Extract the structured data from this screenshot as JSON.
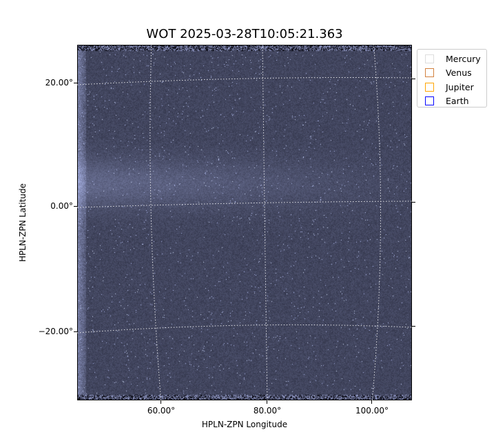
{
  "chart_data": {
    "type": "image",
    "title": "WOT 2025-03-28T10:05:21.363",
    "xlabel": "HPLN-ZPN Longitude",
    "ylabel": "HPLN-ZPN Latitude",
    "x_ticks": [
      "60.00°",
      "80.00°",
      "100.00°"
    ],
    "y_ticks": [
      "20.00°",
      "0.00°",
      "−20.00°"
    ],
    "grid": true,
    "colormap": "bone",
    "legend_placement": "outside-top-right",
    "legend": [
      {
        "name": "Mercury",
        "color": "#dddddd"
      },
      {
        "name": "Venus",
        "color": "#d2813f"
      },
      {
        "name": "Jupiter",
        "color": "#ffa500"
      },
      {
        "name": "Earth",
        "color": "#0000ff"
      }
    ]
  }
}
